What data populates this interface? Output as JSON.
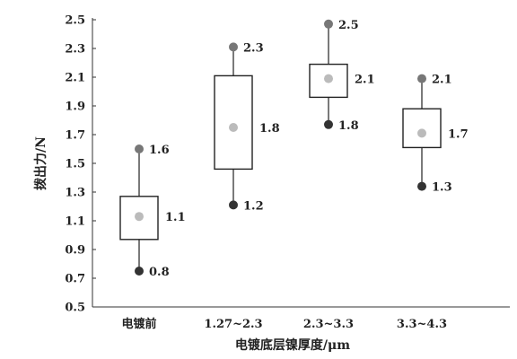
{
  "chart_data": {
    "type": "box",
    "xlabel": "电镀底层镍厚度/μm",
    "ylabel": "拨出力/N",
    "ylim": [
      0.5,
      2.5
    ],
    "yticks": [
      "0.5",
      "0.7",
      "0.9",
      "1.1",
      "1.3",
      "1.5",
      "1.7",
      "1.9",
      "2.1",
      "2.3",
      "2.5"
    ],
    "categories": [
      "电镀前",
      "1.27~2.3",
      "2.3~3.3",
      "3.3~4.3"
    ],
    "boxes": [
      {
        "max": 1.6,
        "max_label": "1.6",
        "q3": 1.27,
        "mean": 1.13,
        "mean_label": "1.1",
        "q1": 0.97,
        "min": 0.75,
        "min_label": "0.8"
      },
      {
        "max": 2.31,
        "max_label": "2.3",
        "q3": 2.11,
        "mean": 1.75,
        "mean_label": "1.8",
        "q1": 1.46,
        "min": 1.21,
        "min_label": "1.2"
      },
      {
        "max": 2.47,
        "max_label": "2.5",
        "q3": 2.19,
        "mean": 2.09,
        "mean_label": "2.1",
        "q1": 1.96,
        "min": 1.77,
        "min_label": "1.8"
      },
      {
        "max": 2.09,
        "max_label": "2.1",
        "q3": 1.88,
        "mean": 1.71,
        "mean_label": "1.7",
        "q1": 1.61,
        "min": 1.34,
        "min_label": "1.3"
      }
    ],
    "grid": false,
    "colors": {
      "axis": "#333333",
      "box": "#222222",
      "max_point": "#777777",
      "mean_point": "#bbbbbb",
      "min_point": "#333333"
    }
  }
}
